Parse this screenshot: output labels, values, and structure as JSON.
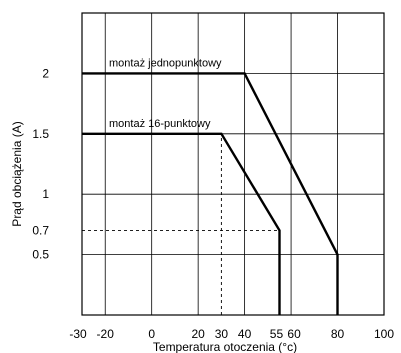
{
  "chart_data": {
    "type": "line",
    "title": "",
    "xlabel": "Temperatura otoczenia (°c)",
    "ylabel": "Prąd obciążenia (A)",
    "xlim": [
      -30,
      100
    ],
    "ylim": [
      0,
      2.5
    ],
    "x_ticks": [
      {
        "value": -30,
        "label": "-30"
      },
      {
        "value": -20,
        "label": "-20"
      },
      {
        "value": 0,
        "label": "0"
      },
      {
        "value": 20,
        "label": "20"
      },
      {
        "value": 30,
        "label": "30"
      },
      {
        "value": 40,
        "label": "40"
      },
      {
        "value": 55,
        "label": "55"
      },
      {
        "value": 60,
        "label": "60"
      },
      {
        "value": 80,
        "label": "80"
      },
      {
        "value": 100,
        "label": "100"
      }
    ],
    "y_ticks": [
      {
        "value": 0.5,
        "label": "0.5"
      },
      {
        "value": 0.7,
        "label": "0.7"
      },
      {
        "value": 1,
        "label": "1"
      },
      {
        "value": 1.5,
        "label": "1.5"
      },
      {
        "value": 2,
        "label": "2"
      }
    ],
    "x_grid": [
      -20,
      0,
      20,
      40,
      60,
      80
    ],
    "y_grid": [
      0.5,
      1,
      1.5,
      2
    ],
    "series": [
      {
        "name": "montaż jednopunktowy",
        "x": [
          -30,
          40,
          80,
          80
        ],
        "y": [
          2,
          2,
          0.5,
          0
        ]
      },
      {
        "name": "montaż 16-punktowy",
        "x": [
          -30,
          30,
          55,
          55
        ],
        "y": [
          1.5,
          1.5,
          0.7,
          0
        ]
      }
    ],
    "reference_lines": [
      {
        "from": [
          30,
          0
        ],
        "to": [
          30,
          1.5
        ]
      },
      {
        "from": [
          -30,
          0.7
        ],
        "to": [
          55,
          0.7
        ]
      }
    ]
  }
}
